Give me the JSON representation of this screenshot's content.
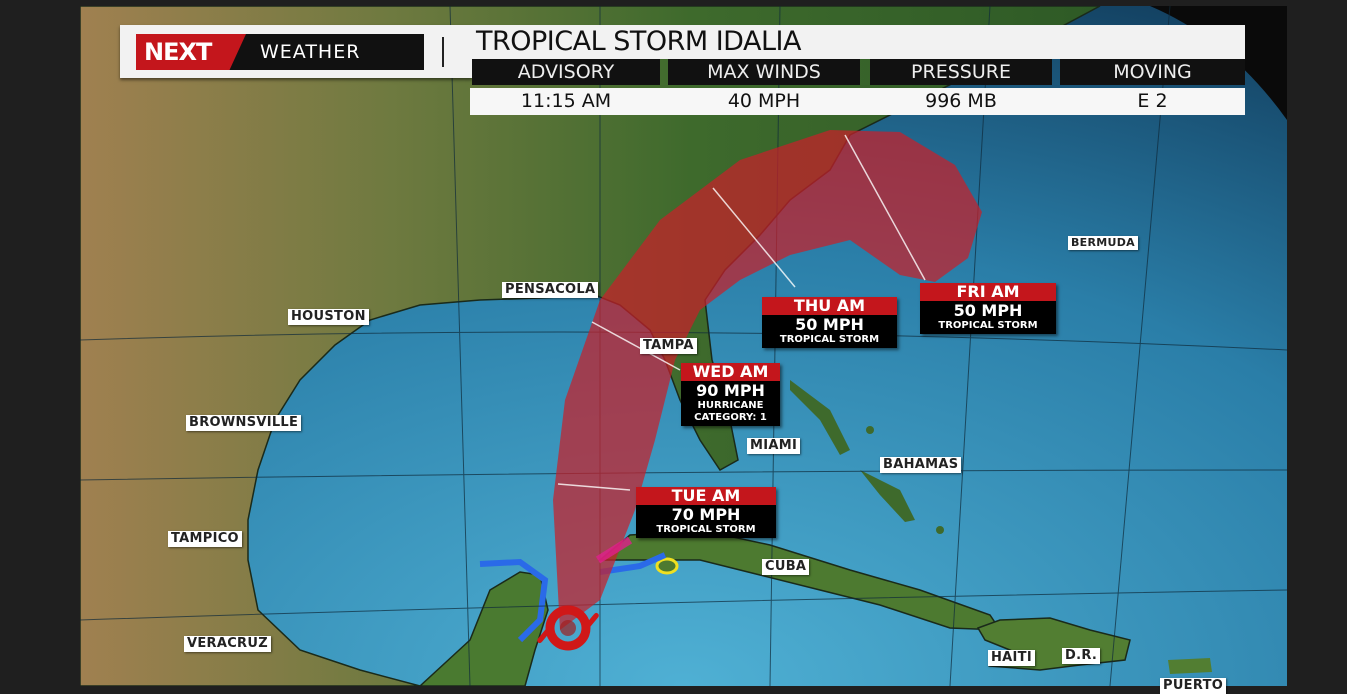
{
  "header": {
    "logo_text": {
      "brand": "NEXT",
      "suffix": "WEATHER"
    },
    "title": "TROPICAL STORM IDALIA",
    "stats": [
      {
        "label": "ADVISORY",
        "value": "11:15 AM"
      },
      {
        "label": "MAX WINDS",
        "value": "40 MPH"
      },
      {
        "label": "PRESSURE",
        "value": "996 MB"
      },
      {
        "label": "MOVING",
        "value": "E 2"
      }
    ]
  },
  "places": [
    "PENSACOLA",
    "HOUSTON",
    "BROWNSVILLE",
    "TAMPICO",
    "VERACRUZ",
    "TAMPA",
    "MIAMI",
    "BAHAMAS",
    "CUBA",
    "BERMUDA",
    "HAITI",
    "D.R.",
    "PUERTO"
  ],
  "forecast_points": [
    {
      "time": "TUE AM",
      "wind": "70 MPH",
      "type": "TROPICAL STORM"
    },
    {
      "time": "WED AM",
      "wind": "90 MPH",
      "type": "HURRICANE",
      "category": "CATEGORY: 1"
    },
    {
      "time": "THU AM",
      "wind": "50 MPH",
      "type": "TROPICAL STORM"
    },
    {
      "time": "FRI AM",
      "wind": "50 MPH",
      "type": "TROPICAL STORM"
    }
  ],
  "icons": {
    "storm": "tropical-storm-icon"
  },
  "colors": {
    "brand_red": "#c4161c",
    "cone": "#c8202a",
    "hurricane_warning": "#e0208c",
    "ts_warning": "#2a6ae8",
    "ts_watch": "#f0e020",
    "ocean": "#2a7ea8"
  }
}
